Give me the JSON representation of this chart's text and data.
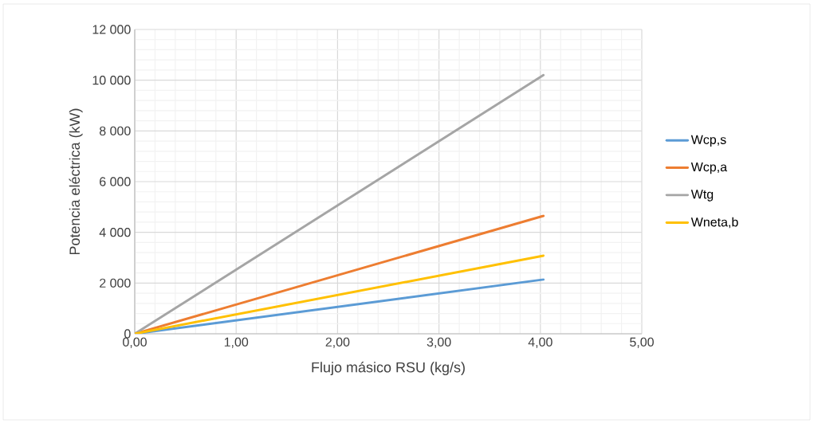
{
  "chart_data": {
    "type": "line",
    "xlabel": "Flujo másico RSU (kg/s)",
    "ylabel": "Potencia eléctrica (kW)",
    "x": [
      0,
      4.03
    ],
    "series": [
      {
        "name": "Wcp,s",
        "color": "#5b9bd5",
        "values": [
          0,
          2140
        ]
      },
      {
        "name": "Wcp,a",
        "color": "#ed7d31",
        "values": [
          0,
          4650
        ]
      },
      {
        "name": "Wtg",
        "color": "#a5a5a5",
        "values": [
          0,
          10200
        ]
      },
      {
        "name": "Wneta,b",
        "color": "#ffc000",
        "values": [
          0,
          3080
        ]
      }
    ],
    "xlim": [
      0,
      5
    ],
    "ylim": [
      0,
      12000
    ],
    "xticks": [
      {
        "value": 0,
        "label": "0,00"
      },
      {
        "value": 1,
        "label": "1,00"
      },
      {
        "value": 2,
        "label": "2,00"
      },
      {
        "value": 3,
        "label": "3,00"
      },
      {
        "value": 4,
        "label": "4,00"
      },
      {
        "value": 5,
        "label": "5,00"
      }
    ],
    "yticks": [
      0,
      {
        "value": 2000,
        "label": "2 000"
      },
      {
        "value": 4000,
        "label": "4 000"
      },
      {
        "value": 6000,
        "label": "6 000"
      },
      {
        "value": 8000,
        "label": "8 000"
      },
      {
        "value": 10000,
        "label": "10 000"
      },
      {
        "value": 12000,
        "label": "12 000"
      }
    ],
    "grid": true,
    "legend": "right",
    "marker": "none",
    "line_style": "solid"
  }
}
